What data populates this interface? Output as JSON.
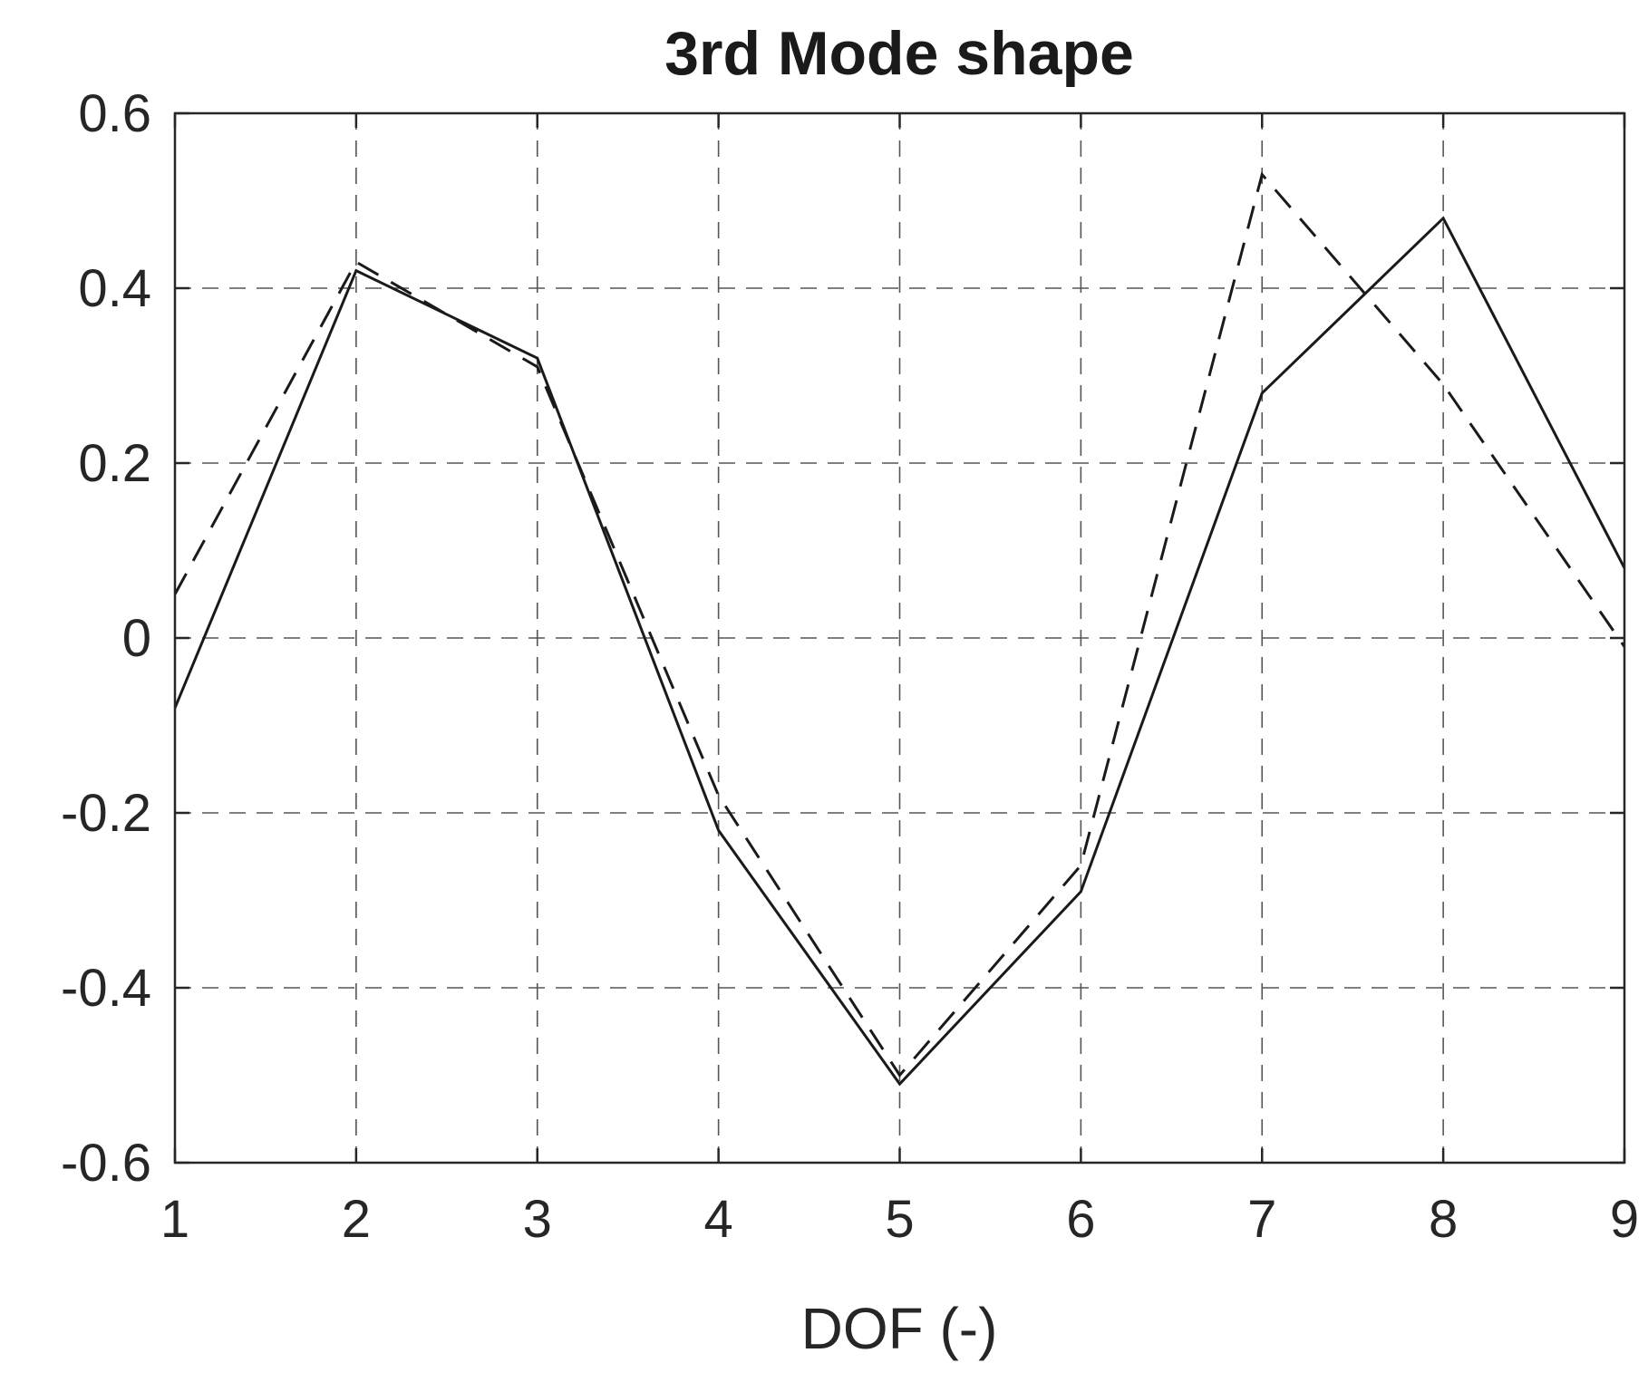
{
  "chart_data": {
    "type": "line",
    "title": "3rd Mode shape",
    "xlabel": "DOF (-)",
    "ylabel": "",
    "xlim": [
      1,
      9
    ],
    "ylim": [
      -0.6,
      0.6
    ],
    "xticks": [
      1,
      2,
      3,
      4,
      5,
      6,
      7,
      8,
      9
    ],
    "xtick_labels": [
      "1",
      "2",
      "3",
      "4",
      "5",
      "6",
      "7",
      "8",
      "9"
    ],
    "yticks": [
      -0.6,
      -0.4,
      -0.2,
      0,
      0.2,
      0.4,
      0.6
    ],
    "ytick_labels": [
      "-0.6",
      "-0.4",
      "-0.2",
      "0",
      "0.2",
      "0.4",
      "0.6"
    ],
    "grid": true,
    "legend": "none",
    "x": [
      1,
      2,
      3,
      4,
      5,
      6,
      7,
      8,
      9
    ],
    "series": [
      {
        "style": "solid",
        "color": "#1a1a1a",
        "values": [
          -0.08,
          0.42,
          0.32,
          -0.22,
          -0.51,
          -0.29,
          0.28,
          0.48,
          0.08
        ]
      },
      {
        "style": "dashed",
        "color": "#1a1a1a",
        "values": [
          0.05,
          0.43,
          0.31,
          -0.18,
          -0.5,
          -0.26,
          0.53,
          0.29,
          -0.01
        ]
      }
    ]
  }
}
